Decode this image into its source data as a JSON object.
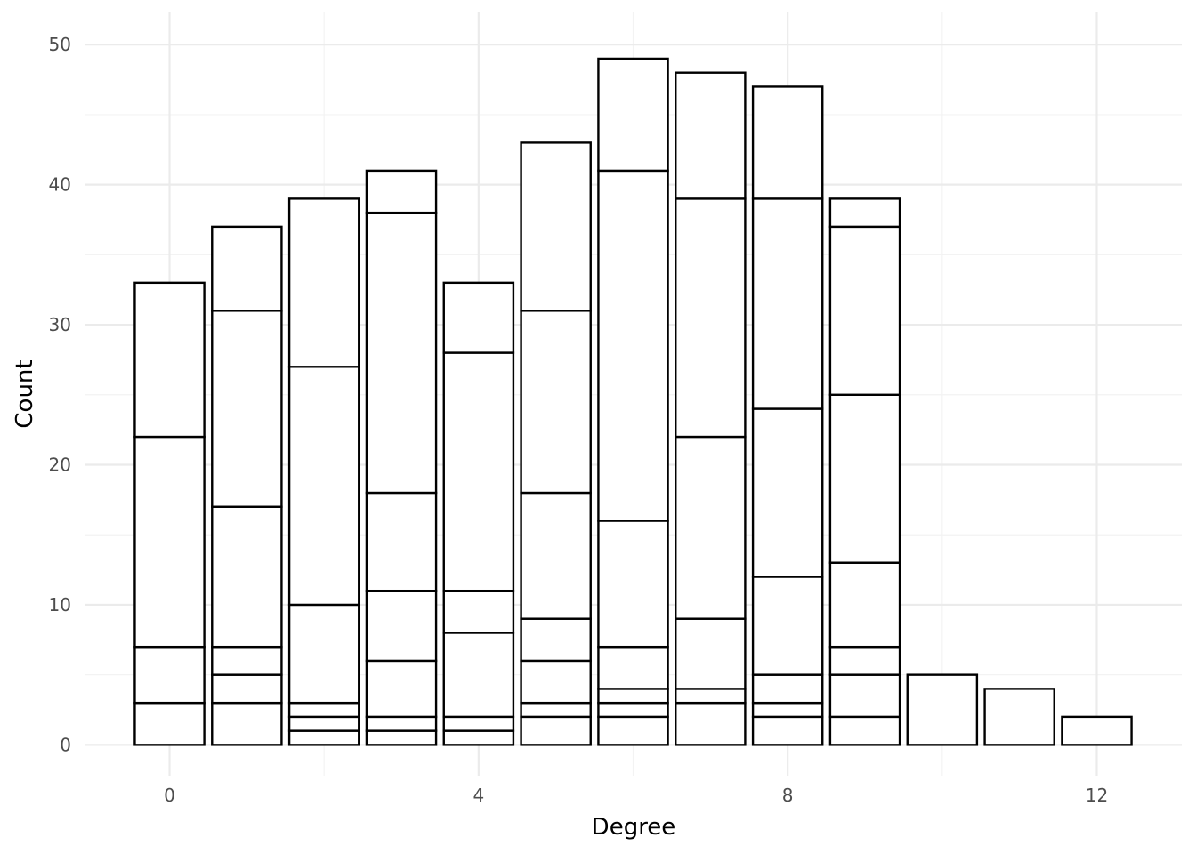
{
  "chart_data": {
    "type": "bar",
    "stacked": true,
    "xlabel": "Degree",
    "ylabel": "Count",
    "x_ticks": [
      0,
      4,
      8,
      12
    ],
    "y_ticks": [
      0,
      10,
      20,
      30,
      40,
      50
    ],
    "xlim": [
      -1.1,
      13.1
    ],
    "ylim": [
      -2.2,
      52.3
    ],
    "grid": true,
    "bars": [
      {
        "x": 0,
        "total": 33,
        "boundaries": [
          3,
          7,
          22
        ]
      },
      {
        "x": 1,
        "total": 37,
        "boundaries": [
          3,
          5,
          7,
          17,
          31
        ]
      },
      {
        "x": 2,
        "total": 39,
        "boundaries": [
          1,
          2,
          3,
          10,
          27
        ]
      },
      {
        "x": 3,
        "total": 41,
        "boundaries": [
          1,
          2,
          6,
          11,
          18,
          38
        ]
      },
      {
        "x": 4,
        "total": 33,
        "boundaries": [
          1,
          2,
          8,
          11,
          28
        ]
      },
      {
        "x": 5,
        "total": 43,
        "boundaries": [
          2,
          3,
          6,
          9,
          18,
          31
        ]
      },
      {
        "x": 6,
        "total": 49,
        "boundaries": [
          2,
          3,
          4,
          7,
          16,
          41
        ]
      },
      {
        "x": 7,
        "total": 48,
        "boundaries": [
          3,
          4,
          9,
          22,
          39
        ]
      },
      {
        "x": 8,
        "total": 47,
        "boundaries": [
          2,
          3,
          5,
          12,
          24,
          39
        ]
      },
      {
        "x": 9,
        "total": 39,
        "boundaries": [
          2,
          5,
          7,
          13,
          25,
          37
        ]
      },
      {
        "x": 10,
        "total": 5,
        "boundaries": []
      },
      {
        "x": 11,
        "total": 4,
        "boundaries": []
      },
      {
        "x": 12,
        "total": 2,
        "boundaries": []
      }
    ]
  }
}
